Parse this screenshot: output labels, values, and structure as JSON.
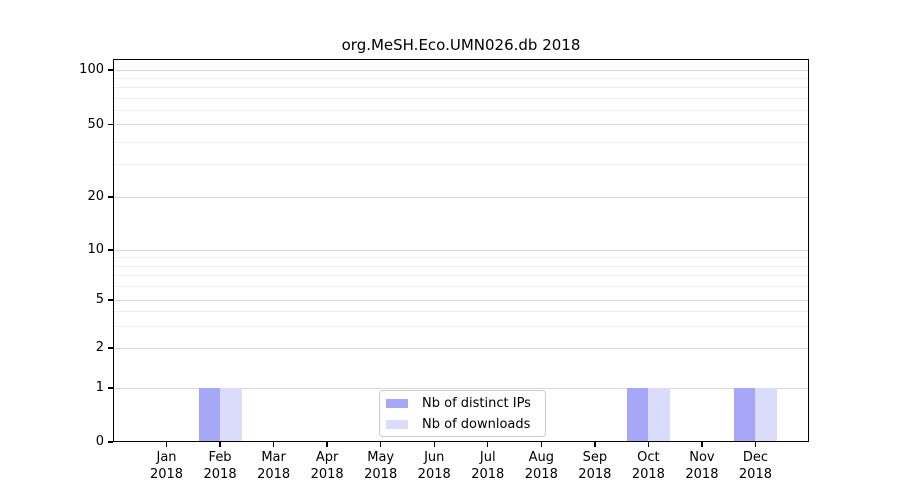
{
  "title": "org.MeSH.Eco.UMN026.db 2018",
  "chart_data": {
    "type": "bar",
    "title": "org.MeSH.Eco.UMN026.db 2018",
    "categories": [
      "Jan 2018",
      "Feb 2018",
      "Mar 2018",
      "Apr 2018",
      "May 2018",
      "Jun 2018",
      "Jul 2018",
      "Aug 2018",
      "Sep 2018",
      "Oct 2018",
      "Nov 2018",
      "Dec 2018"
    ],
    "series": [
      {
        "name": "Nb of distinct IPs",
        "color": "#a7a7f8",
        "values": [
          0,
          1,
          0,
          0,
          0,
          0,
          0,
          0,
          0,
          1,
          0,
          1
        ]
      },
      {
        "name": "Nb of downloads",
        "color": "#dbdbfb",
        "values": [
          0,
          1,
          0,
          0,
          0,
          0,
          0,
          0,
          0,
          1,
          0,
          1
        ]
      }
    ],
    "xlabel": "",
    "ylabel": "",
    "yscale": "log-like with 0 baseline",
    "y_major_ticks": [
      0,
      1,
      2,
      5,
      10,
      20,
      50,
      100
    ],
    "y_minor_gridlines": [
      3,
      4,
      6,
      7,
      8,
      9,
      30,
      40,
      60,
      70,
      80,
      90
    ],
    "ylim": [
      0,
      115
    ],
    "grid": true,
    "legend_position": "bottom-center"
  },
  "colors": {
    "distinct_ips": "#a7a7f8",
    "downloads": "#dbdbfb",
    "grid_major": "#d8d8d8",
    "grid_minor": "#f0f0f0",
    "axis": "#000000",
    "legend_border": "#cccccc"
  }
}
